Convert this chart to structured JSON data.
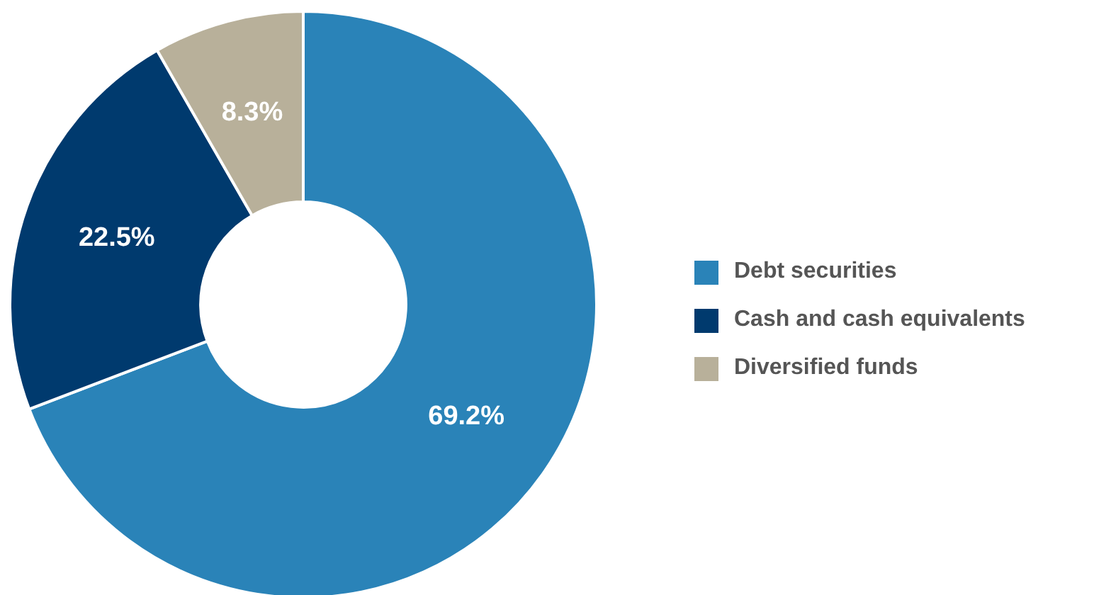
{
  "chart_data": {
    "type": "donut",
    "categories": [
      "Debt securities",
      "Cash and cash equivalents",
      "Diversified funds"
    ],
    "values": [
      69.2,
      22.5,
      8.3
    ],
    "colors": [
      "#2a83b8",
      "#003a6e",
      "#b8b09a"
    ],
    "value_labels": [
      "69.2%",
      "22.5%",
      "8.3%"
    ],
    "legend": "right"
  }
}
